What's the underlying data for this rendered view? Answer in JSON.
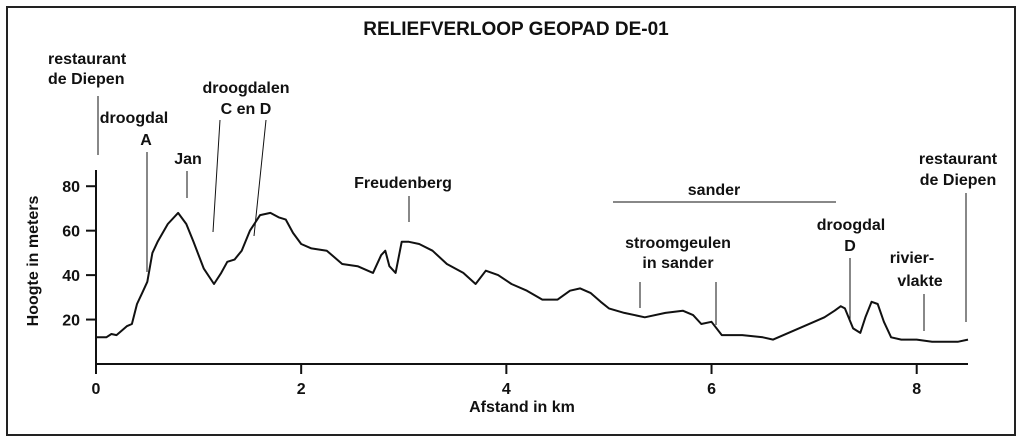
{
  "chart_data": {
    "type": "line",
    "title": "RELIEFVERLOOP GEOPAD DE-01",
    "xlabel": "Afstand in km",
    "ylabel": "Hoogte in meters",
    "xlim": [
      0,
      8.5
    ],
    "ylim": [
      0,
      90
    ],
    "x_ticks": [
      0,
      2,
      4,
      6,
      8
    ],
    "y_ticks": [
      20,
      40,
      60,
      80
    ],
    "grid": false,
    "series": [
      {
        "x": [
          0,
          0.1,
          0.15,
          0.2,
          0.25,
          0.3,
          0.35,
          0.4,
          0.45,
          0.5,
          0.55,
          0.6,
          0.7,
          0.8,
          0.88,
          0.95,
          1.05,
          1.15,
          1.22,
          1.28,
          1.35,
          1.42,
          1.5,
          1.6,
          1.7,
          1.78,
          1.85,
          1.92,
          2.0,
          2.1,
          2.25,
          2.4,
          2.55,
          2.7,
          2.78,
          2.82,
          2.86,
          2.92,
          2.98,
          3.05,
          3.15,
          3.28,
          3.42,
          3.58,
          3.7,
          3.8,
          3.92,
          4.05,
          4.2,
          4.35,
          4.5,
          4.62,
          4.72,
          4.82,
          4.92,
          5.0,
          5.15,
          5.35,
          5.55,
          5.72,
          5.82,
          5.9,
          6.0,
          6.1,
          6.3,
          6.5,
          6.6,
          6.8,
          7.0,
          7.1,
          7.2,
          7.26,
          7.3,
          7.38,
          7.45,
          7.5,
          7.56,
          7.62,
          7.68,
          7.75,
          7.85,
          8.0,
          8.15,
          8.3,
          8.4,
          8.5
        ],
        "y": [
          12,
          12,
          13.5,
          13,
          15,
          17,
          18,
          27,
          32,
          37,
          50,
          55,
          63,
          68,
          63,
          55,
          43,
          36,
          41,
          46,
          47,
          51,
          60,
          67,
          68,
          66,
          65,
          59,
          54,
          52,
          51,
          45,
          44,
          41,
          49,
          51,
          44,
          41,
          55,
          55,
          54,
          51,
          45,
          41,
          36,
          42,
          40,
          36,
          33,
          29,
          29,
          33,
          34,
          32,
          28,
          25,
          23,
          21,
          23,
          24,
          22,
          18,
          19,
          13,
          13,
          12,
          11,
          15,
          19,
          21,
          24,
          26,
          25,
          16,
          14,
          21,
          28,
          27,
          19,
          12,
          11,
          11,
          10,
          10,
          10,
          11
        ]
      }
    ]
  },
  "annotations": {
    "restaurant_left": [
      "restaurant",
      "de Diepen"
    ],
    "droogdal_a": [
      "droogdal",
      "A"
    ],
    "jan": "Jan",
    "droogdalen_cd": [
      "droogdalen",
      "C en D"
    ],
    "freudenberg": "Freudenberg",
    "sander": "sander",
    "stroomgeulen": [
      "stroomgeulen",
      "in sander"
    ],
    "droogdal_d": [
      "droogdal",
      "D"
    ],
    "riviervlakte": [
      "rivier-",
      "vlakte"
    ],
    "restaurant_right": [
      "restaurant",
      "de Diepen"
    ]
  }
}
